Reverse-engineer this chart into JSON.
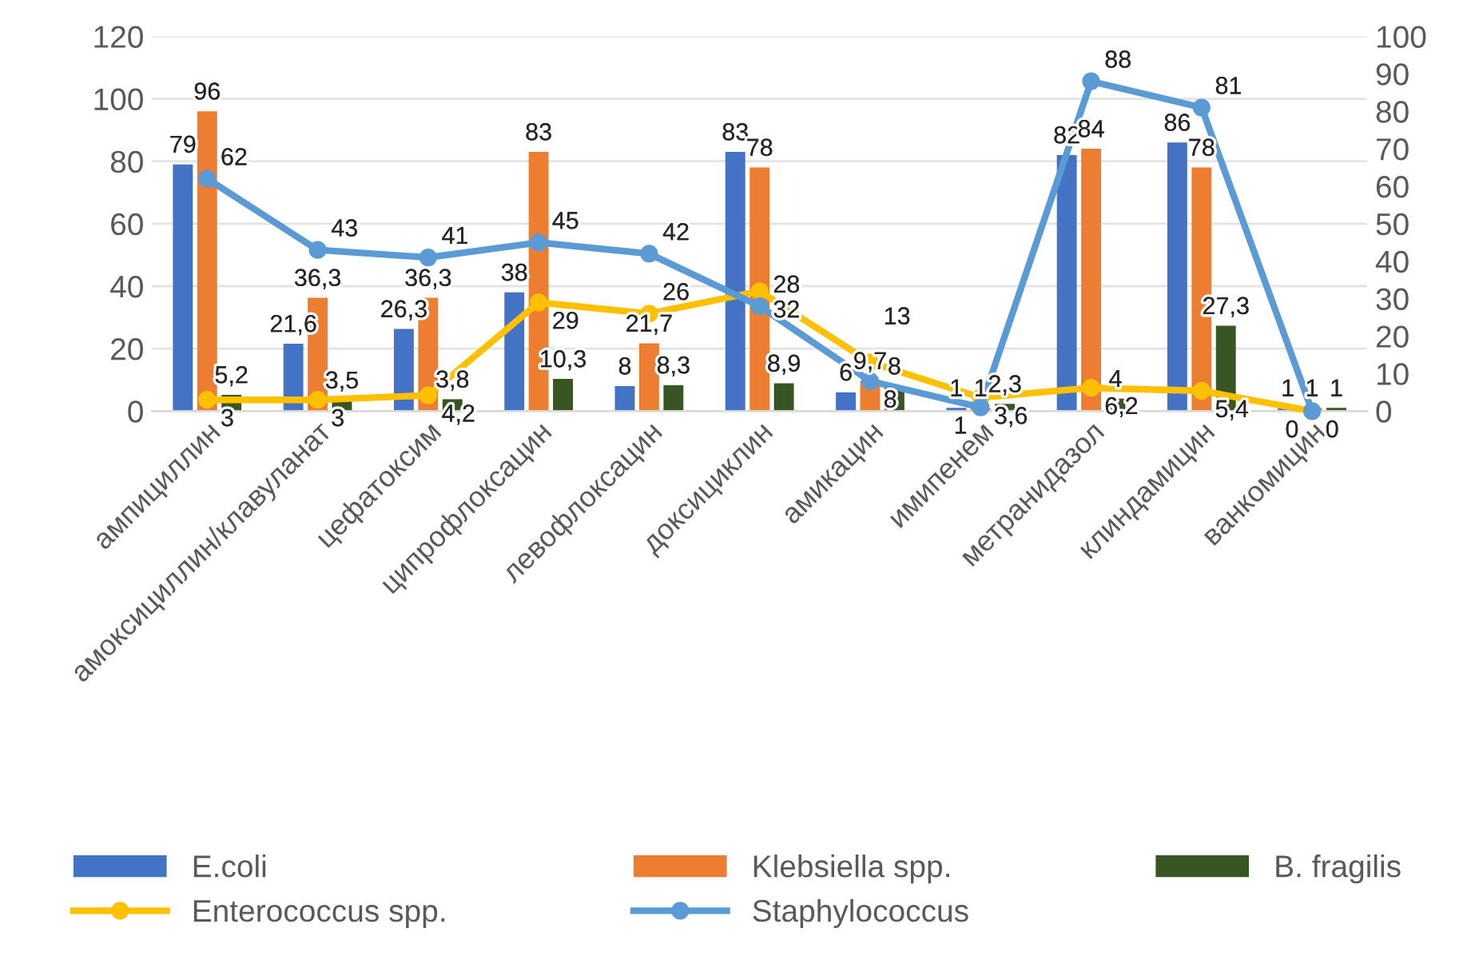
{
  "chart_data": {
    "type": "bar",
    "categories": [
      "ампициллин",
      "амоксициллин/клавуланат",
      "цефатоксим",
      "ципрофлоксацин",
      "левофлоксацин",
      "доксициклин",
      "амикацин",
      "имипенем",
      "метранидазол",
      "клиндамицин",
      "ванкомицин"
    ],
    "series": [
      {
        "name": "E.coli",
        "color": "#4472c4",
        "values": [
          79,
          21.6,
          26.3,
          38,
          8,
          83,
          6,
          1,
          82,
          86,
          1
        ],
        "value_labels": [
          "79",
          "21,6",
          "26,3",
          "38",
          "8",
          "83",
          "6",
          "1",
          "82",
          "86",
          "1"
        ]
      },
      {
        "name": "Klebsiella spp.",
        "color": "#ed7d31",
        "values": [
          96,
          36.3,
          36.3,
          83,
          21.7,
          78,
          9.7,
          1,
          84,
          78,
          1
        ],
        "value_labels": [
          "96",
          "36,3",
          "36,3",
          "83",
          "21,7",
          "78",
          "9,7",
          "1",
          "84",
          "78",
          "1"
        ]
      },
      {
        "name": "B. fragilis",
        "color": "#375623",
        "values": [
          5.2,
          3.5,
          3.8,
          10.3,
          8.3,
          8.9,
          8,
          2.3,
          4,
          27.3,
          1
        ],
        "value_labels": [
          "5,2",
          "3,5",
          "3,8",
          "10,3",
          "8,3",
          "8,9",
          "8",
          "2,3",
          "4",
          "27,3",
          "1"
        ]
      },
      {
        "name": "Enterococcus spp.",
        "type": "line",
        "axis": "y2",
        "color": "#ffc000",
        "values": [
          3,
          3,
          4.2,
          29,
          26,
          32,
          13,
          3.6,
          6.2,
          5.4,
          0
        ],
        "value_labels": [
          "3",
          "3",
          "4,2",
          "29",
          "26",
          "32",
          "13",
          "3,6",
          "6,2",
          "5,4",
          "0"
        ]
      },
      {
        "name": "Staphylococcus",
        "type": "line",
        "axis": "y2",
        "color": "#5b9bd5",
        "values": [
          62,
          43,
          41,
          45,
          42,
          28,
          8,
          1,
          88,
          81,
          0
        ],
        "value_labels": [
          "62",
          "43",
          "41",
          "45",
          "42",
          "28",
          "8",
          "1",
          "88",
          "81",
          "0"
        ]
      }
    ],
    "ylim": [
      0,
      120
    ],
    "yticks": [
      0,
      20,
      40,
      60,
      80,
      100,
      120
    ],
    "y2lim": [
      0,
      100
    ],
    "y2ticks": [
      0,
      10,
      20,
      30,
      40,
      50,
      60,
      70,
      80,
      90,
      100
    ],
    "grid": "y",
    "legend": "bottom",
    "marker": "circle",
    "line_style": "solid"
  }
}
